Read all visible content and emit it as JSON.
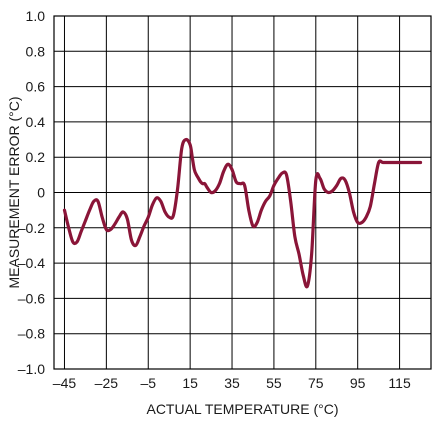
{
  "chart_data": {
    "type": "line",
    "xlabel": "ACTUAL TEMPERATURE (°C)",
    "ylabel": "MEASUREMENT ERROR (°C)",
    "xlim": [
      -50,
      130
    ],
    "ylim": [
      -1.0,
      1.0
    ],
    "xticks": [
      -45,
      -25,
      -5,
      15,
      35,
      55,
      75,
      95,
      115
    ],
    "xtick_labels": [
      "–45",
      "–25",
      "–5",
      "15",
      "35",
      "55",
      "75",
      "95",
      "115"
    ],
    "yticks": [
      1.0,
      0.8,
      0.6,
      0.4,
      0.2,
      0,
      -0.2,
      -0.4,
      -0.6,
      -0.8,
      -1.0
    ],
    "ytick_labels": [
      "1.0",
      "0.8",
      "0.6",
      "0.4",
      "0.2",
      "0",
      "–0.2",
      "–0.4",
      "–0.6",
      "–0.8",
      "–1.0"
    ],
    "grid": true,
    "line_color": "#8a1538",
    "series": [
      {
        "x": [
          -45,
          -43,
          -41,
          -39,
          -37,
          -35,
          -33,
          -31,
          -29,
          -27,
          -25,
          -23,
          -21,
          -19,
          -17,
          -15,
          -13,
          -11,
          -9,
          -7,
          -5,
          -3,
          -1,
          1,
          3,
          5,
          7,
          9,
          11,
          13,
          15,
          16,
          17,
          18,
          19,
          20,
          21,
          22,
          23,
          25,
          27,
          29,
          31,
          33,
          35,
          37,
          39,
          41,
          43,
          45,
          47,
          49,
          51,
          53,
          55,
          57,
          59,
          61,
          63,
          65,
          67,
          69,
          71,
          73,
          75,
          77,
          79,
          81,
          83,
          85,
          87,
          89,
          91,
          93,
          95,
          97,
          99,
          101,
          103,
          105,
          107,
          109,
          111,
          113,
          115,
          117,
          119,
          121,
          123,
          125
        ],
        "y": [
          -0.1,
          -0.2,
          -0.28,
          -0.28,
          -0.22,
          -0.16,
          -0.1,
          -0.05,
          -0.05,
          -0.14,
          -0.21,
          -0.21,
          -0.18,
          -0.14,
          -0.11,
          -0.15,
          -0.27,
          -0.3,
          -0.25,
          -0.19,
          -0.14,
          -0.07,
          -0.03,
          -0.05,
          -0.11,
          -0.14,
          -0.13,
          0.02,
          0.25,
          0.3,
          0.27,
          0.2,
          0.13,
          0.1,
          0.08,
          0.06,
          0.05,
          0.05,
          0.03,
          0.0,
          0.01,
          0.05,
          0.12,
          0.16,
          0.13,
          0.06,
          0.05,
          0.04,
          -0.1,
          -0.19,
          -0.17,
          -0.1,
          -0.05,
          -0.02,
          0.04,
          0.08,
          0.11,
          0.1,
          -0.05,
          -0.25,
          -0.35,
          -0.47,
          -0.53,
          -0.35,
          0.07,
          0.08,
          0.02,
          0.0,
          0.01,
          0.04,
          0.08,
          0.07,
          0.0,
          -0.11,
          -0.17,
          -0.17,
          -0.14,
          -0.08,
          0.05,
          0.17,
          0.17,
          0.17,
          0.17,
          0.17,
          0.17,
          0.17,
          0.17,
          0.17,
          0.17,
          0.17
        ]
      }
    ]
  }
}
